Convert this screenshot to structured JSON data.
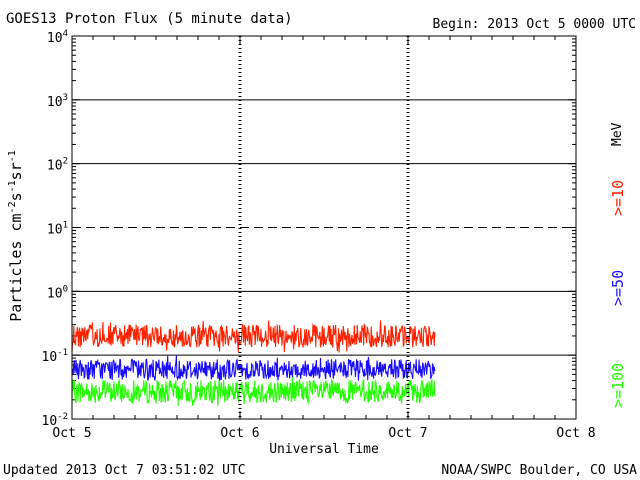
{
  "header": {
    "title": "GOES13 Proton Flux (5 minute data)",
    "begin": "Begin: 2013 Oct 5 0000 UTC"
  },
  "footer": {
    "updated": "Updated 2013 Oct  7 03:51:02 UTC",
    "credit": "NOAA/SWPC Boulder, CO USA"
  },
  "colors": {
    "ge10": "#ff2200",
    "ge50": "#1a0dff",
    "ge100": "#22ff00",
    "grid": "#000000"
  },
  "chart_data": {
    "type": "line",
    "title": "GOES13 Proton Flux (5 minute data)",
    "xlabel": "Universal Time",
    "ylabel_parts": [
      "Particles cm",
      "-2",
      "s",
      "-1",
      "sr",
      "-1"
    ],
    "yscale": "log",
    "ylim_exp": [
      -2,
      4
    ],
    "xlim_days": [
      0,
      3
    ],
    "x_ticks": [
      {
        "day": 0,
        "label": "Oct 5"
      },
      {
        "day": 1,
        "label": "Oct 6"
      },
      {
        "day": 2,
        "label": "Oct 7"
      },
      {
        "day": 3,
        "label": "Oct 8"
      }
    ],
    "y_ticks": [
      {
        "exp": -2,
        "base": "10",
        "sup": "-2"
      },
      {
        "exp": -1,
        "base": "10",
        "sup": "-1"
      },
      {
        "exp": 0,
        "base": "10",
        "sup": "0"
      },
      {
        "exp": 1,
        "base": "10",
        "sup": "1"
      },
      {
        "exp": 2,
        "base": "10",
        "sup": "2"
      },
      {
        "exp": 3,
        "base": "10",
        "sup": "3"
      },
      {
        "exp": 4,
        "base": "10",
        "sup": "4"
      }
    ],
    "solid_grid_exp": [
      -1,
      0,
      2,
      3
    ],
    "dashed_grid_exp": [
      1
    ],
    "day_markers": [
      1,
      2
    ],
    "energy_unit": "MeV",
    "data_end_day": 2.16,
    "series": [
      {
        "name": ">=10",
        "color_key": "ge10",
        "base": 0.2,
        "min": 0.11,
        "max": 0.55,
        "amp": 0.18
      },
      {
        "name": ">=50",
        "color_key": "ge50",
        "base": 0.06,
        "min": 0.04,
        "max": 0.13,
        "amp": 0.16
      },
      {
        "name": ">=100",
        "color_key": "ge100",
        "base": 0.027,
        "min": 0.016,
        "max": 0.06,
        "amp": 0.18
      }
    ]
  }
}
